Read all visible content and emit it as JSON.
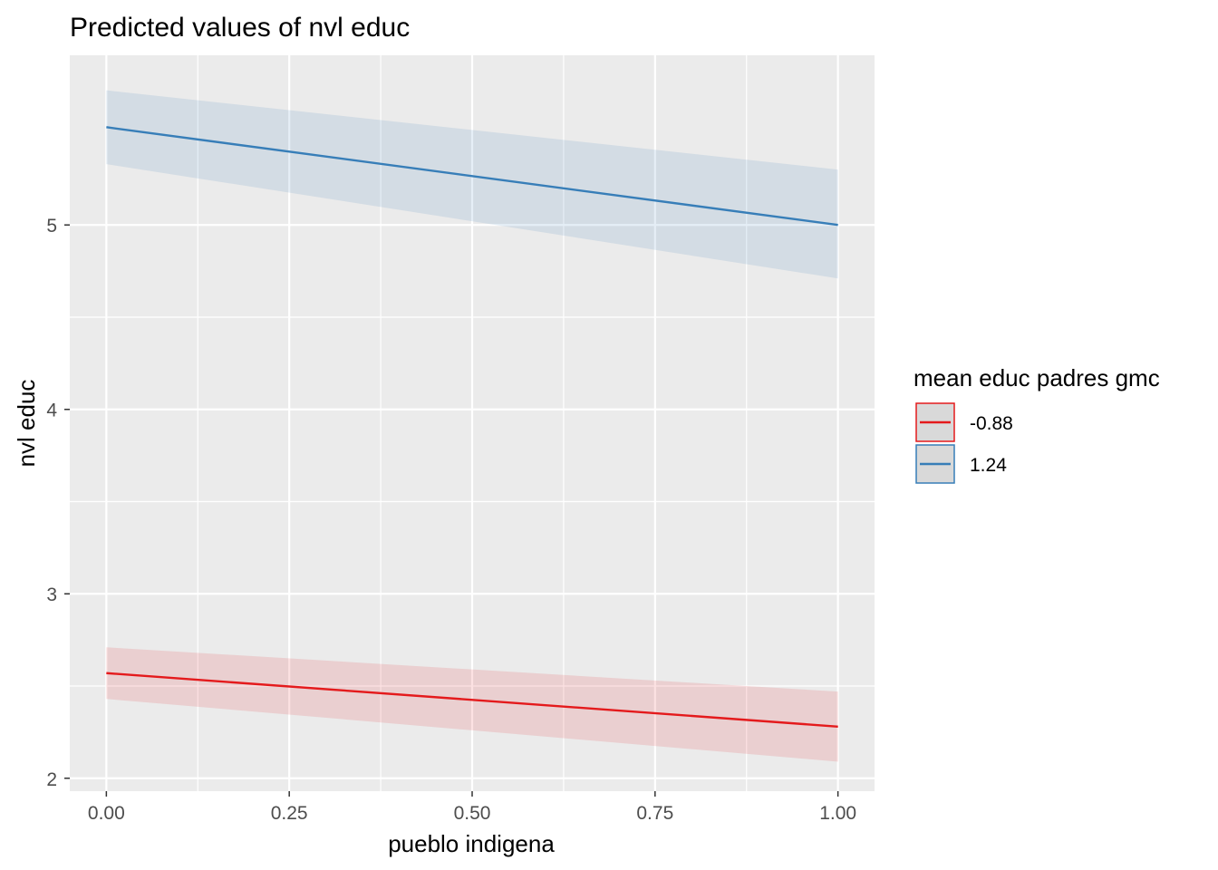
{
  "chart_data": {
    "type": "line",
    "title": "Predicted values of nvl educ",
    "xlabel": "pueblo indigena",
    "ylabel": "nvl educ",
    "xlim": [
      -0.05,
      1.05
    ],
    "ylim": [
      1.93,
      5.92
    ],
    "x_ticks": [
      0,
      0.25,
      0.5,
      0.75,
      1
    ],
    "x_tick_labels": [
      "0.00",
      "0.25",
      "0.50",
      "0.75",
      "1.00"
    ],
    "y_ticks": [
      2,
      3,
      4,
      5
    ],
    "y_tick_labels": [
      "2",
      "3",
      "4",
      "5"
    ],
    "grid": true,
    "legend": {
      "title": "mean educ padres gmc",
      "position": "right"
    },
    "series": [
      {
        "name": "-0.88",
        "color": "#e41a1c",
        "x": [
          0,
          1
        ],
        "y": [
          2.57,
          2.28
        ],
        "ci_low": [
          2.43,
          2.09
        ],
        "ci_high": [
          2.71,
          2.47
        ]
      },
      {
        "name": "1.24",
        "color": "#377eb8",
        "x": [
          0,
          1
        ],
        "y": [
          5.53,
          5.0
        ],
        "ci_low": [
          5.33,
          4.71
        ],
        "ci_high": [
          5.73,
          5.3
        ]
      }
    ]
  }
}
